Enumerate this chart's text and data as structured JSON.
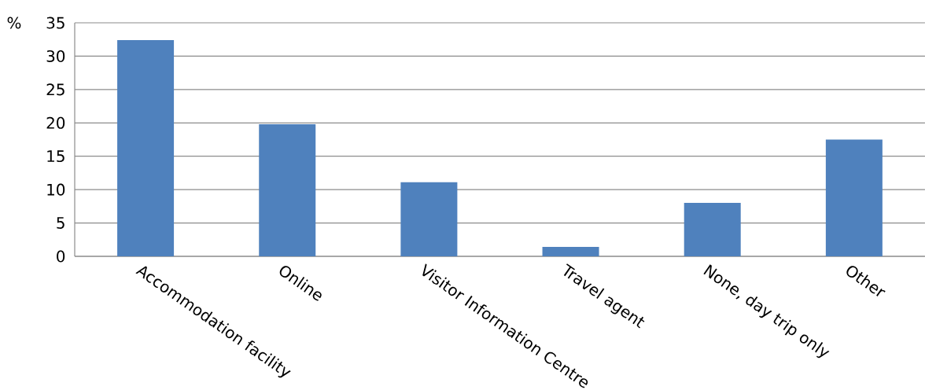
{
  "chart_data": {
    "type": "bar",
    "ylabel": "%",
    "categories": [
      "Accommodation facility",
      "Online",
      "Visitor Information Centre",
      "Travel agent",
      "None, day trip only",
      "Other"
    ],
    "values": [
      32.4,
      19.8,
      11.1,
      1.4,
      8.0,
      17.5
    ],
    "color": "#4f81bd",
    "ylim": [
      0,
      35
    ],
    "yticks": [
      0,
      5,
      10,
      15,
      20,
      25,
      30,
      35
    ],
    "grid": "y"
  }
}
